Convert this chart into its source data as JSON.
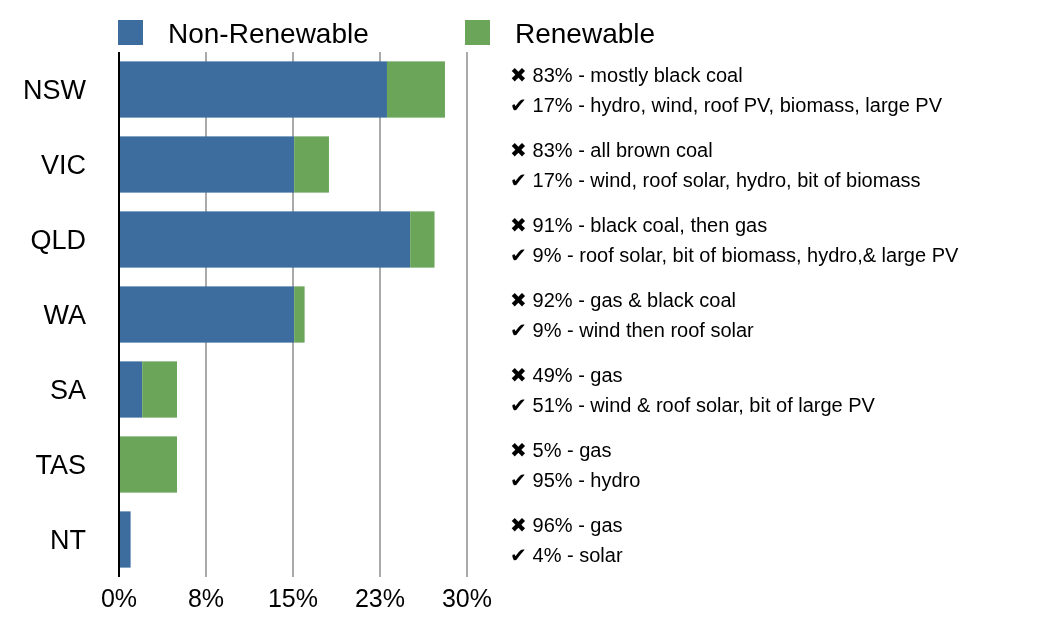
{
  "chart_data": {
    "type": "bar",
    "orientation": "horizontal",
    "stacked": true,
    "categories": [
      "NSW",
      "VIC",
      "QLD",
      "WA",
      "SA",
      "TAS",
      "NT"
    ],
    "series": [
      {
        "name": "Non-Renewable",
        "color": "#3d6d9e",
        "values": [
          23.1,
          15.1,
          25.1,
          15.1,
          2.0,
          0,
          1.0
        ]
      },
      {
        "name": "Renewable",
        "color": "#6aa55a",
        "values": [
          5.0,
          3.0,
          2.1,
          0.9,
          3.0,
          5.0,
          0
        ]
      }
    ],
    "xlim": [
      0,
      30
    ],
    "xticks": [
      {
        "value": 0,
        "label": "0%"
      },
      {
        "value": 7.5,
        "label": "8%"
      },
      {
        "value": 15,
        "label": "15%"
      },
      {
        "value": 22.5,
        "label": "23%"
      },
      {
        "value": 30,
        "label": "30%"
      }
    ],
    "grid": "x",
    "legend": "top",
    "annotations": [
      "✖ 83% - mostly black coal",
      "✔ 17% - hydro, wind, roof PV, biomass, large PV",
      "✖ 83% - all brown coal",
      "✔ 17% - wind, roof solar, hydro, bit of biomass",
      "✖ 91% - black coal, then gas",
      "✔ 9% - roof solar, bit of biomass, hydro,& large PV",
      "✖ 92% - gas & black coal",
      "✔ 9% - wind then roof solar",
      "✖ 49% - gas",
      "✔ 51% - wind & roof solar, bit of large PV",
      "✖ 5% - gas",
      "✔ 95% - hydro",
      "✖ 96% - gas",
      "✔ 4% - solar"
    ]
  }
}
